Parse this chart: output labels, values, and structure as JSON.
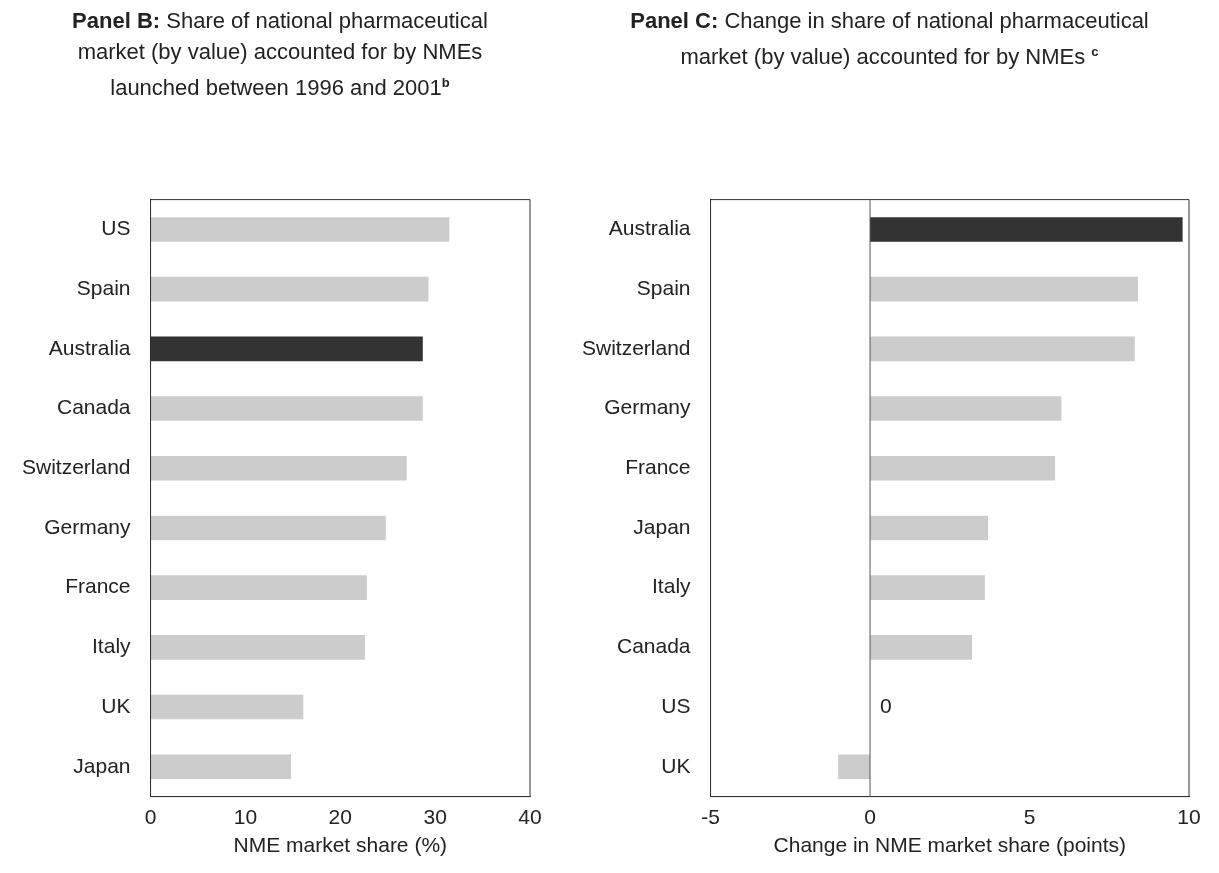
{
  "chart_data": [
    {
      "type": "bar",
      "orientation": "horizontal",
      "title": "Panel B: Share of national pharmaceutical market (by value) accounted for by NMEs launched between 1996 and 2001$^{b}$",
      "xlabel": "NME market share (%)",
      "categories": [
        "US",
        "Spain",
        "Australia",
        "Canada",
        "Switzerland",
        "Germany",
        "France",
        "Italy",
        "UK",
        "Japan"
      ],
      "values": [
        31.5,
        29.3,
        28.7,
        28.7,
        27,
        24.8,
        22.8,
        22.6,
        16.1,
        14.8
      ],
      "colors": [
        "#cccccc",
        "#cccccc",
        "#333333",
        "#cccccc",
        "#cccccc",
        "#cccccc",
        "#cccccc",
        "#cccccc",
        "#cccccc",
        "#cccccc"
      ],
      "xlim": [
        0,
        40
      ],
      "xticks": [
        0,
        10,
        20,
        30,
        40
      ],
      "grid": false
    },
    {
      "type": "bar",
      "orientation": "horizontal",
      "title": "Panel C: Change in share of national pharmaceutical market (by value) accounted for by NMEs $^{c}$",
      "xlabel": "Change in NME market share (points)",
      "categories": [
        "Australia",
        "Spain",
        "Switzerland",
        "Germany",
        "France",
        "Japan",
        "Italy",
        "Canada",
        "US",
        "UK"
      ],
      "values": [
        9.8,
        8.4,
        8.3,
        6,
        5.8,
        3.7,
        3.6,
        3.2,
        0,
        -1
      ],
      "value_labels": [
        null,
        null,
        null,
        null,
        null,
        null,
        null,
        null,
        "0",
        null
      ],
      "colors": [
        "#333333",
        "#cccccc",
        "#cccccc",
        "#cccccc",
        "#cccccc",
        "#cccccc",
        "#cccccc",
        "#cccccc",
        "#cccccc",
        "#cccccc"
      ],
      "xlim": [
        -5,
        10
      ],
      "xticks": [
        -5,
        0,
        5,
        10
      ],
      "grid": false,
      "ref_lines": [
        {
          "axis": "x",
          "value": 0,
          "color": "#555555"
        }
      ]
    }
  ]
}
